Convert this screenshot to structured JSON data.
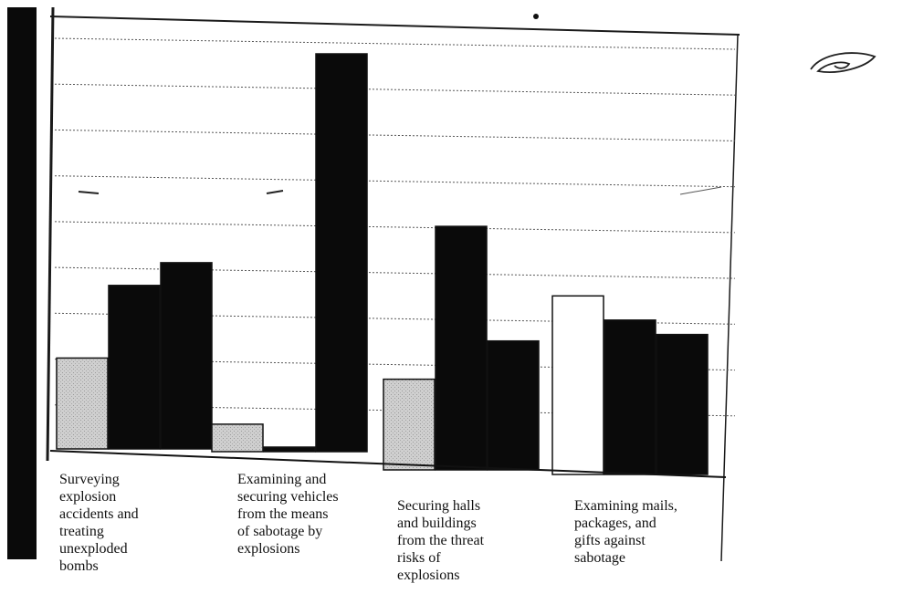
{
  "chart_data": {
    "type": "bar",
    "title": "",
    "xlabel": "",
    "ylabel": "",
    "categories": [
      "Surveying\nexplosion\naccidents and\ntreating\nunexploded\nbombs",
      "Examining and\nsecuring vehicles\nfrom the means\nof sabotage by\nexplosions",
      "Securing halls\nand buildings\nfrom the threat\nrisks of\nexplosions",
      "Examining mails,\npackages, and\ngifts against\nsabotage"
    ],
    "series": [
      {
        "values": [
          2.0,
          0.6,
          1.9,
          3.7
        ]
      },
      {
        "values": [
          3.6,
          0.1,
          5.1,
          3.2
        ]
      },
      {
        "values": [
          4.1,
          8.7,
          2.7,
          2.9
        ]
      }
    ],
    "ylim": [
      0,
      9
    ],
    "grid": true,
    "colors": {
      "series": [
        "#d2d2d2",
        "#0a0a0a",
        "#0a0a0a"
      ],
      "series_alt": [
        "#ffffff",
        "#0a0a0a",
        "#0a0a0a"
      ],
      "grid": "#555555",
      "frame": "#1a1a1a",
      "left_band": "#0a0a0a"
    }
  }
}
